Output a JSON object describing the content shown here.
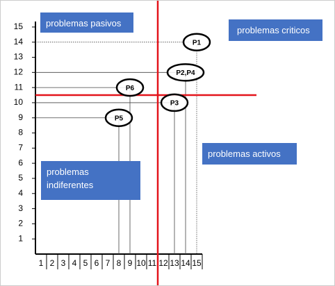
{
  "chart_data": {
    "type": "scatter",
    "points": [
      {
        "label": "P1",
        "x": 15,
        "y": 14
      },
      {
        "label": "P2,P4",
        "x": 14,
        "y": 12
      },
      {
        "label": "P6",
        "x": 9,
        "y": 11
      },
      {
        "label": "P3",
        "x": 13,
        "y": 10
      },
      {
        "label": "P5",
        "x": 8,
        "y": 9
      }
    ],
    "xlim": [
      0.5,
      15.5
    ],
    "ylim": [
      0,
      15.5
    ],
    "xticks": [
      1,
      2,
      3,
      4,
      5,
      6,
      7,
      8,
      9,
      10,
      11,
      12,
      13,
      14,
      15
    ],
    "yticks": [
      1,
      2,
      3,
      4,
      5,
      6,
      7,
      8,
      9,
      10,
      11,
      12,
      13,
      14,
      15
    ],
    "divider_x": 11.5,
    "divider_y": 10.5,
    "divider_color": "#e3141b",
    "annotations": [
      "problemas pasivos",
      "problemas criticos",
      "problemas activos",
      "problemas indiferentes"
    ]
  }
}
